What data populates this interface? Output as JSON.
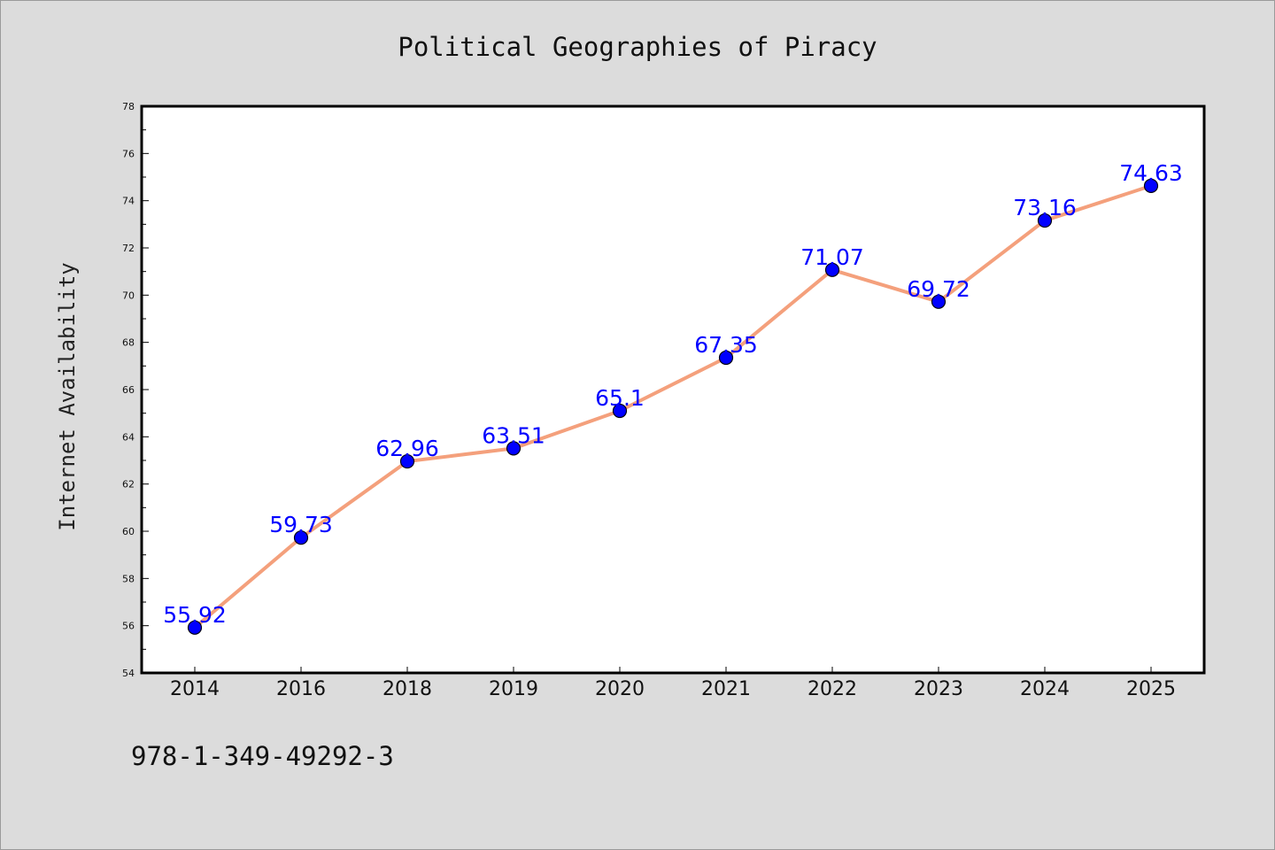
{
  "chart_data": {
    "type": "line",
    "title": "Political Geographies of Piracy",
    "xlabel": "",
    "ylabel": "Internet Availability",
    "categories": [
      "2014",
      "2016",
      "2018",
      "2019",
      "2020",
      "2021",
      "2022",
      "2023",
      "2024",
      "2025"
    ],
    "series": [
      {
        "values": [
          55.92,
          59.73,
          62.96,
          63.51,
          65.1,
          67.35,
          71.07,
          69.72,
          73.16,
          74.63
        ],
        "labels": [
          "55.92",
          "59.73",
          "62.96",
          "63.51",
          "65.1",
          "67.35",
          "71.07",
          "69.72",
          "73.16",
          "74.63"
        ]
      }
    ],
    "ylim": [
      54,
      78
    ],
    "yticks": [
      "54",
      "56",
      "58",
      "60",
      "62",
      "64",
      "66",
      "68",
      "70",
      "72",
      "74",
      "76",
      "78"
    ],
    "grid": false,
    "line_color": "#f4a07c",
    "marker_color": "#0000ff",
    "label_color": "#0000ff",
    "plot_background": "#ffffff",
    "page_background": "#dcdcdc"
  },
  "footer": {
    "isbn": "978-1-349-49292-3"
  }
}
